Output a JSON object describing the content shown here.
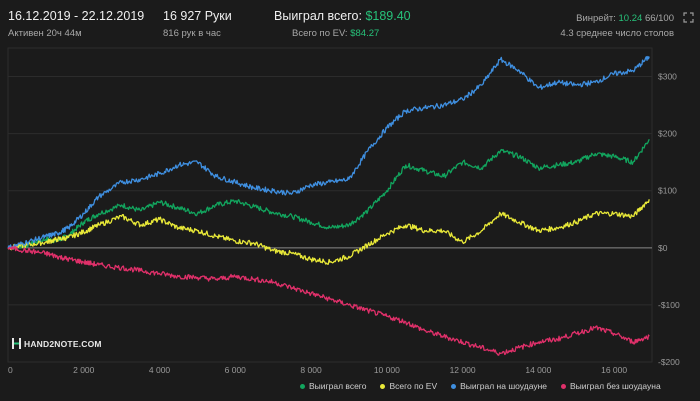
{
  "header": {
    "date_range": "16.12.2019 - 22.12.2019",
    "active": "Активен 20ч 44м",
    "hands": "16 927 Руки",
    "hands_per_hour": "816 рук в час",
    "won_total_label": "Выиграл всего:",
    "won_total_value": "$189.40",
    "ev_total_label": "Всего по EV:",
    "ev_total_value": "$84.27",
    "winrate_label": "Винрейт:",
    "winrate_value": "10.24",
    "winrate_sample": "66/100",
    "avg_tables": "4.3 среднее число столов"
  },
  "logo": {
    "text": "HAND2NOTE.COM"
  },
  "colors": {
    "background": "#1b1b1b",
    "green": "#12a55e",
    "yellow": "#e8e838",
    "blue": "#3f8fe0",
    "pink": "#e0306a"
  },
  "chart_data": {
    "type": "line",
    "xlabel": "",
    "ylabel": "",
    "xlim": [
      0,
      17000
    ],
    "ylim": [
      -200,
      350
    ],
    "x_ticks": [
      0,
      2000,
      4000,
      6000,
      8000,
      10000,
      12000,
      14000,
      16000
    ],
    "x_tick_labels": [
      "0",
      "2 000",
      "4 000",
      "6 000",
      "8 000",
      "10 000",
      "12 000",
      "14 000",
      "16 000"
    ],
    "y_ticks": [
      300,
      200,
      100,
      0,
      -100,
      -200
    ],
    "y_tick_labels": [
      "$300",
      "$200",
      "$100",
      "$0",
      "-$100",
      "-$200"
    ],
    "zero_line": true,
    "legend_position": "bottom",
    "series": [
      {
        "name": "Выиграл всего",
        "color": "#12a55e",
        "x": [
          0,
          500,
          1000,
          1300,
          1600,
          2000,
          2400,
          3000,
          3500,
          4000,
          4500,
          5000,
          5500,
          6000,
          6500,
          7000,
          7500,
          8000,
          8500,
          9000,
          9500,
          10000,
          10500,
          11000,
          11500,
          12000,
          12500,
          13000,
          13500,
          14000,
          14500,
          15000,
          15500,
          16000,
          16500,
          16927
        ],
        "y": [
          0,
          5,
          15,
          12,
          22,
          45,
          60,
          75,
          65,
          80,
          70,
          60,
          75,
          82,
          72,
          62,
          55,
          45,
          35,
          40,
          65,
          100,
          145,
          135,
          125,
          150,
          140,
          170,
          160,
          140,
          145,
          150,
          165,
          160,
          150,
          190
        ]
      },
      {
        "name": "Всего по EV",
        "color": "#e8e838",
        "x": [
          0,
          500,
          1000,
          1300,
          1600,
          2000,
          2400,
          3000,
          3500,
          4000,
          4500,
          5000,
          5500,
          6000,
          6500,
          7000,
          7500,
          8000,
          8500,
          9000,
          9500,
          10000,
          10500,
          11000,
          11500,
          12000,
          12500,
          13000,
          13500,
          14000,
          14500,
          15000,
          15500,
          16000,
          16500,
          16927
        ],
        "y": [
          0,
          5,
          10,
          15,
          18,
          28,
          40,
          55,
          40,
          50,
          35,
          30,
          20,
          12,
          8,
          -5,
          -10,
          -20,
          -25,
          -15,
          5,
          25,
          40,
          30,
          30,
          10,
          30,
          60,
          45,
          30,
          35,
          45,
          60,
          60,
          55,
          85
        ]
      },
      {
        "name": "Выиграл на шоудауне",
        "color": "#3f8fe0",
        "x": [
          0,
          500,
          1000,
          1300,
          1600,
          2000,
          2400,
          3000,
          3500,
          4000,
          4500,
          5000,
          5500,
          6000,
          6500,
          7000,
          7500,
          8000,
          8500,
          9000,
          9500,
          10000,
          10500,
          11000,
          11500,
          12000,
          12500,
          13000,
          13500,
          14000,
          14500,
          15000,
          15500,
          16000,
          16500,
          16927
        ],
        "y": [
          0,
          10,
          20,
          25,
          35,
          60,
          90,
          115,
          120,
          130,
          145,
          150,
          125,
          115,
          105,
          100,
          95,
          110,
          115,
          120,
          170,
          210,
          240,
          245,
          250,
          260,
          285,
          330,
          310,
          280,
          290,
          285,
          290,
          305,
          310,
          335
        ]
      },
      {
        "name": "Выиграл без шоудауна",
        "color": "#e0306a",
        "x": [
          0,
          500,
          1000,
          1300,
          1600,
          2000,
          2400,
          3000,
          3500,
          4000,
          4500,
          5000,
          5500,
          6000,
          6500,
          7000,
          7500,
          8000,
          8500,
          9000,
          9500,
          10000,
          10500,
          11000,
          11500,
          12000,
          12500,
          13000,
          13500,
          14000,
          14500,
          15000,
          15500,
          16000,
          16500,
          16927
        ],
        "y": [
          0,
          -5,
          -10,
          -15,
          -20,
          -25,
          -30,
          -35,
          -40,
          -45,
          -50,
          -52,
          -55,
          -50,
          -55,
          -60,
          -70,
          -80,
          -90,
          -100,
          -110,
          -120,
          -130,
          -145,
          -155,
          -165,
          -175,
          -185,
          -175,
          -165,
          -160,
          -150,
          -140,
          -150,
          -165,
          -155
        ]
      }
    ]
  }
}
